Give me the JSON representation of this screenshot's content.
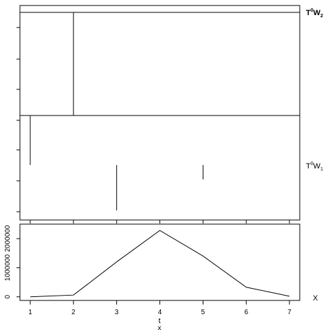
{
  "chart_data": [
    {
      "type": "line",
      "panel": "upper",
      "series": [
        {
          "name": "T^0 W_2",
          "label_main": "T",
          "label_sup": "0",
          "label_main2": "W",
          "label_sub": "2"
        },
        {
          "name": "T^0 W_1",
          "label_main": "T",
          "label_sup": "0",
          "label_main2": "W",
          "label_sub": "1"
        }
      ],
      "note_segments": "vertical segments drawn per time step",
      "segments_w2": [
        {
          "t": 2,
          "from": 0.0,
          "to": 1.0
        }
      ],
      "segments_w1": [
        {
          "t": 1,
          "from": 0.0,
          "to": -0.48
        },
        {
          "t": 3,
          "from": -0.48,
          "to": -0.92
        },
        {
          "t": 5,
          "from": -0.48,
          "to": -0.62
        }
      ]
    },
    {
      "type": "line",
      "panel": "lower",
      "xlabel": "t",
      "xlabel_sub": "x",
      "ylabel_right": "X",
      "x": [
        1,
        2,
        3,
        4,
        5,
        6,
        7
      ],
      "values": [
        0,
        60000,
        1200000,
        2280000,
        1400000,
        330000,
        20000
      ],
      "ylim": [
        -30000,
        2380000
      ],
      "yticks": [
        0,
        1000000,
        2000000
      ],
      "ytick_labels": [
        "0",
        "1000000",
        "2000000"
      ],
      "xticks": [
        1,
        2,
        3,
        4,
        5,
        6,
        7
      ],
      "xtick_labels": [
        "1",
        "2",
        "3",
        "4",
        "5",
        "6",
        "7"
      ]
    }
  ]
}
